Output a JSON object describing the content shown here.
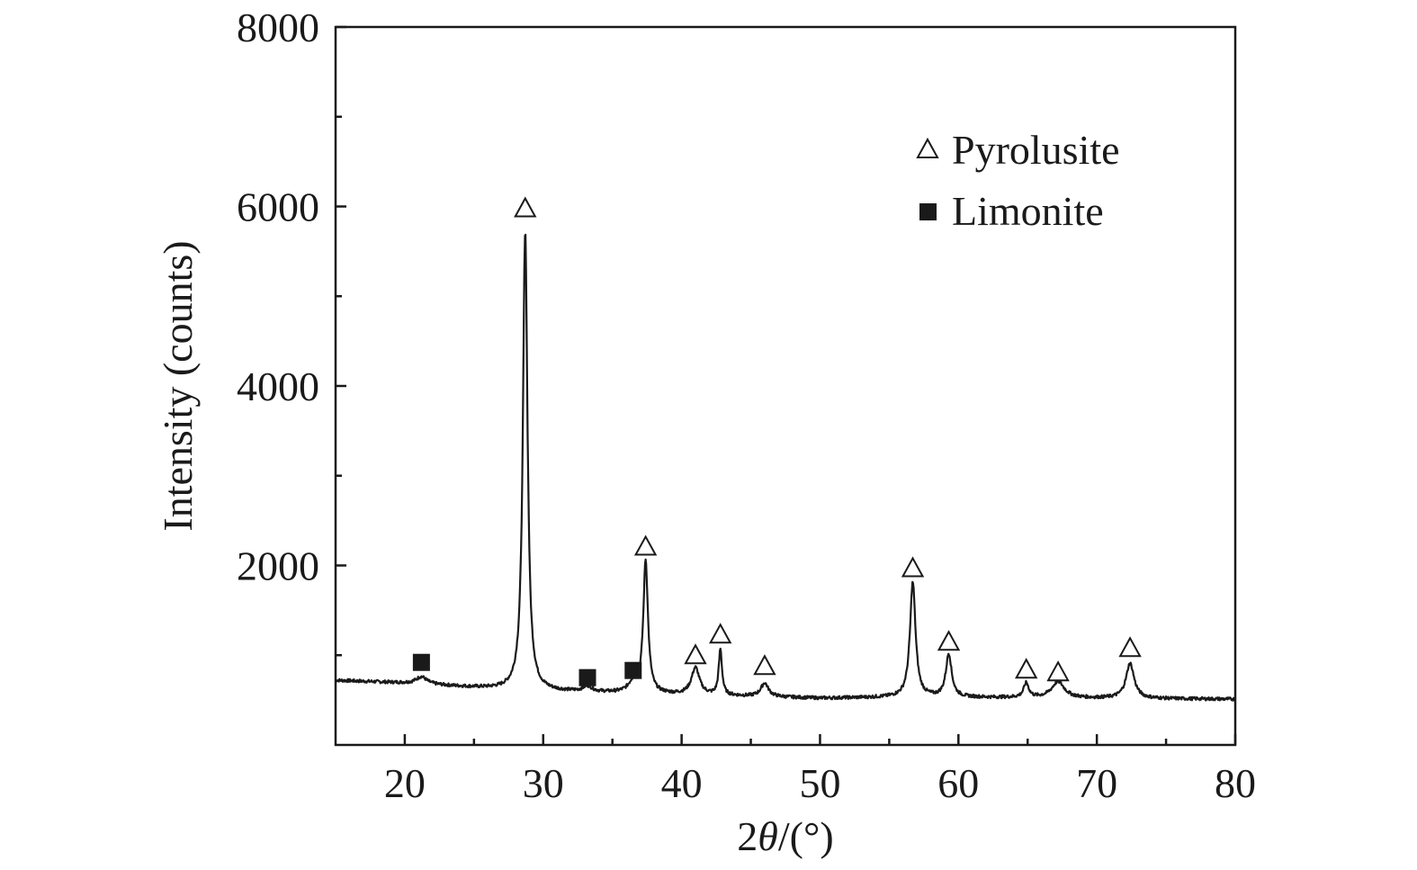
{
  "chart_data": {
    "type": "line",
    "title": "",
    "xlabel_prefix": "2",
    "xlabel_symbol": "θ",
    "xlabel_suffix": "/(°)",
    "ylabel": "Intensity (counts)",
    "xlim": [
      15,
      80
    ],
    "ylim": [
      0,
      8000
    ],
    "x_ticks": [
      20,
      30,
      40,
      50,
      60,
      70,
      80
    ],
    "x_minor_ticks": [
      25,
      35,
      45,
      55,
      65,
      75
    ],
    "y_ticks": [
      2000,
      4000,
      6000,
      8000
    ],
    "y_minor_ticks": [
      1000,
      3000,
      5000,
      7000
    ],
    "grid": false,
    "legend_position": "top-right",
    "baseline": [
      {
        "x": 15,
        "y": 720
      },
      {
        "x": 20,
        "y": 690
      },
      {
        "x": 25,
        "y": 640
      },
      {
        "x": 27,
        "y": 620
      },
      {
        "x": 30,
        "y": 600
      },
      {
        "x": 35,
        "y": 580
      },
      {
        "x": 40,
        "y": 560
      },
      {
        "x": 45,
        "y": 540
      },
      {
        "x": 50,
        "y": 520
      },
      {
        "x": 55,
        "y": 530
      },
      {
        "x": 60,
        "y": 530
      },
      {
        "x": 65,
        "y": 525
      },
      {
        "x": 70,
        "y": 520
      },
      {
        "x": 75,
        "y": 515
      },
      {
        "x": 80,
        "y": 510
      }
    ],
    "peaks": [
      {
        "x": 21.2,
        "height": 80,
        "width": 0.45
      },
      {
        "x": 28.7,
        "height": 5110,
        "width": 0.2
      },
      {
        "x": 33.2,
        "height": 60,
        "width": 0.4
      },
      {
        "x": 36.5,
        "height": 110,
        "width": 0.4
      },
      {
        "x": 37.4,
        "height": 1480,
        "width": 0.2
      },
      {
        "x": 41.0,
        "height": 300,
        "width": 0.35
      },
      {
        "x": 42.8,
        "height": 510,
        "width": 0.14
      },
      {
        "x": 46.0,
        "height": 150,
        "width": 0.33
      },
      {
        "x": 56.7,
        "height": 1280,
        "width": 0.24
      },
      {
        "x": 59.3,
        "height": 480,
        "width": 0.25
      },
      {
        "x": 64.9,
        "height": 160,
        "width": 0.22
      },
      {
        "x": 67.2,
        "height": 180,
        "width": 0.55
      },
      {
        "x": 72.4,
        "height": 390,
        "width": 0.35
      }
    ],
    "series": [
      {
        "name": "Pyrolusite",
        "marker": "open-triangle",
        "points": [
          {
            "x": 28.7,
            "y": 5980
          },
          {
            "x": 37.4,
            "y": 2210
          },
          {
            "x": 41.0,
            "y": 1000
          },
          {
            "x": 42.8,
            "y": 1230
          },
          {
            "x": 46.0,
            "y": 880
          },
          {
            "x": 56.7,
            "y": 1970
          },
          {
            "x": 59.3,
            "y": 1150
          },
          {
            "x": 64.9,
            "y": 840
          },
          {
            "x": 67.2,
            "y": 810
          },
          {
            "x": 72.4,
            "y": 1080
          }
        ]
      },
      {
        "name": "Limonite",
        "marker": "filled-square",
        "points": [
          {
            "x": 21.2,
            "y": 920
          },
          {
            "x": 33.2,
            "y": 750
          },
          {
            "x": 36.5,
            "y": 830
          }
        ]
      }
    ],
    "colors": {
      "line": "#1a1a1a",
      "background": "#ffffff"
    }
  }
}
